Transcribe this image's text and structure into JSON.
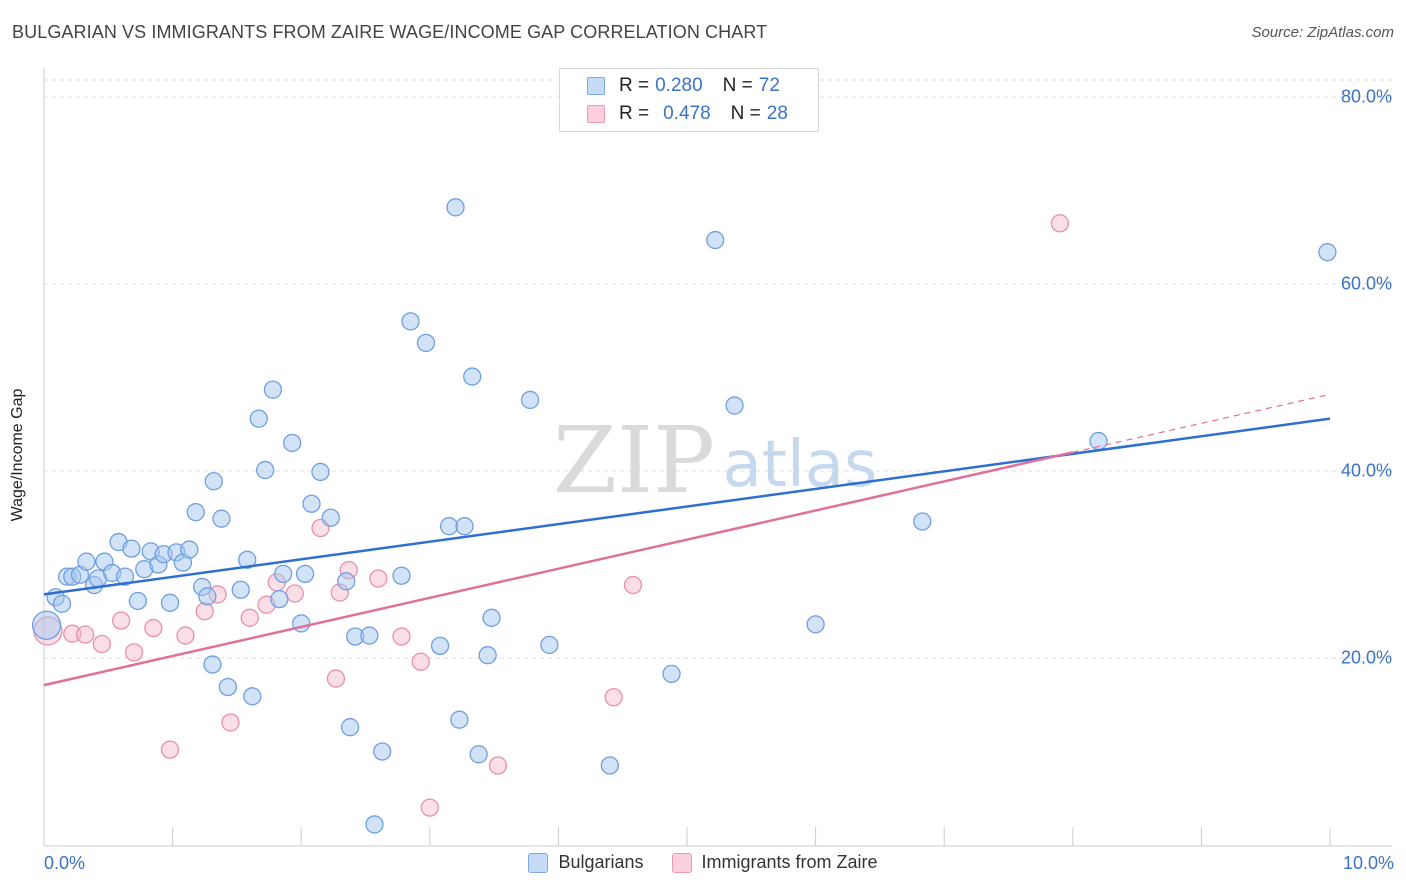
{
  "header": {
    "title": "BULGARIAN VS IMMIGRANTS FROM ZAIRE WAGE/INCOME GAP CORRELATION CHART",
    "source": "Source: ZipAtlas.com"
  },
  "watermark": {
    "zip": "ZIP",
    "atlas": "atlas"
  },
  "legend_top": {
    "rows": [
      {
        "r_label": "R =",
        "r_value": "0.280",
        "n_label": "N =",
        "n_value": "72",
        "color": "#a8c8f0"
      },
      {
        "r_label": "R =",
        "r_value": "0.478",
        "n_label": "N =",
        "n_value": "28",
        "color": "#f5b8c8"
      }
    ]
  },
  "legend_bottom": {
    "items": [
      "Bulgarians",
      "Immigrants from Zaire"
    ]
  },
  "colors": {
    "blue_fill": "#a8c8f0",
    "blue_stroke": "#6f9fe0",
    "blue_line": "#2f6fcf",
    "pink_fill": "#f5b8c8",
    "pink_stroke": "#e890aa",
    "pink_line": "#e0709a",
    "grid": "#dddddd",
    "tick_text": "#3a72c8"
  },
  "chart_data": {
    "type": "scatter",
    "title": "BULGARIAN VS IMMIGRANTS FROM ZAIRE WAGE/INCOME GAP CORRELATION CHART",
    "xlabel": "",
    "ylabel": "Wage/Income Gap",
    "xlim": [
      0,
      10
    ],
    "ylim": [
      0,
      82
    ],
    "x_tick_labels": [
      "0.0%",
      "10.0%"
    ],
    "y_ticks": [
      20,
      40,
      60,
      80
    ],
    "y_tick_labels": [
      "20.0%",
      "40.0%",
      "60.0%",
      "80.0%"
    ],
    "grid": true,
    "series": [
      {
        "name": "Bulgarians",
        "r": 0.28,
        "n": 72,
        "trend": {
          "x": [
            0,
            10
          ],
          "y": [
            26.8,
            45.6
          ]
        },
        "points": [
          [
            0.02,
            23.5
          ],
          [
            0.09,
            26.5
          ],
          [
            0.14,
            25.8
          ],
          [
            0.18,
            28.7
          ],
          [
            0.22,
            28.7
          ],
          [
            0.28,
            28.9
          ],
          [
            0.33,
            30.3
          ],
          [
            0.39,
            27.8
          ],
          [
            0.42,
            28.5
          ],
          [
            0.47,
            30.3
          ],
          [
            0.53,
            29.1
          ],
          [
            0.58,
            32.4
          ],
          [
            0.63,
            28.7
          ],
          [
            0.68,
            31.7
          ],
          [
            0.73,
            26.1
          ],
          [
            0.78,
            29.5
          ],
          [
            0.83,
            31.4
          ],
          [
            0.89,
            30.0
          ],
          [
            0.93,
            31.1
          ],
          [
            0.98,
            25.9
          ],
          [
            1.03,
            31.3
          ],
          [
            1.08,
            30.2
          ],
          [
            1.13,
            31.6
          ],
          [
            1.18,
            35.6
          ],
          [
            1.23,
            27.6
          ],
          [
            1.27,
            26.6
          ],
          [
            1.31,
            19.3
          ],
          [
            1.32,
            38.9
          ],
          [
            1.38,
            34.9
          ],
          [
            1.43,
            16.9
          ],
          [
            1.53,
            27.3
          ],
          [
            1.58,
            30.5
          ],
          [
            1.62,
            15.9
          ],
          [
            1.67,
            45.6
          ],
          [
            1.72,
            40.1
          ],
          [
            1.78,
            48.7
          ],
          [
            1.83,
            26.3
          ],
          [
            1.86,
            29.0
          ],
          [
            1.93,
            43.0
          ],
          [
            2.0,
            23.7
          ],
          [
            2.03,
            29.0
          ],
          [
            2.08,
            36.5
          ],
          [
            2.15,
            39.9
          ],
          [
            2.23,
            35.0
          ],
          [
            2.35,
            28.2
          ],
          [
            2.38,
            12.6
          ],
          [
            2.42,
            22.3
          ],
          [
            2.53,
            22.4
          ],
          [
            2.57,
            2.2
          ],
          [
            2.63,
            10.0
          ],
          [
            2.78,
            28.8
          ],
          [
            2.85,
            56.0
          ],
          [
            2.97,
            53.7
          ],
          [
            3.08,
            21.3
          ],
          [
            3.15,
            34.1
          ],
          [
            3.2,
            68.2
          ],
          [
            3.23,
            13.4
          ],
          [
            3.27,
            34.1
          ],
          [
            3.33,
            50.1
          ],
          [
            3.38,
            9.7
          ],
          [
            3.45,
            20.3
          ],
          [
            3.48,
            24.3
          ],
          [
            3.78,
            47.6
          ],
          [
            3.93,
            21.4
          ],
          [
            4.4,
            8.5
          ],
          [
            4.88,
            18.3
          ],
          [
            5.22,
            64.7
          ],
          [
            5.37,
            47.0
          ],
          [
            6.0,
            23.6
          ],
          [
            6.83,
            34.6
          ],
          [
            8.2,
            43.2
          ],
          [
            9.98,
            63.4
          ]
        ]
      },
      {
        "name": "Immigrants from Zaire",
        "r": 0.478,
        "n": 28,
        "trend": {
          "x": [
            0,
            8.0
          ],
          "y": [
            17.1,
            42.0
          ]
        },
        "trend_extension": {
          "x": [
            8.0,
            10.0
          ],
          "y": [
            42.0,
            48.2
          ]
        },
        "points": [
          [
            0.03,
            22.9
          ],
          [
            0.22,
            22.6
          ],
          [
            0.32,
            22.5
          ],
          [
            0.45,
            21.5
          ],
          [
            0.6,
            24.0
          ],
          [
            0.7,
            20.6
          ],
          [
            0.85,
            23.2
          ],
          [
            0.98,
            10.2
          ],
          [
            1.1,
            22.4
          ],
          [
            1.25,
            25.0
          ],
          [
            1.35,
            26.8
          ],
          [
            1.45,
            13.1
          ],
          [
            1.6,
            24.3
          ],
          [
            1.73,
            25.7
          ],
          [
            1.81,
            28.1
          ],
          [
            1.95,
            26.9
          ],
          [
            2.15,
            33.9
          ],
          [
            2.27,
            17.8
          ],
          [
            2.3,
            27.0
          ],
          [
            2.37,
            29.4
          ],
          [
            2.6,
            28.5
          ],
          [
            2.78,
            22.3
          ],
          [
            2.93,
            19.6
          ],
          [
            3.0,
            4.0
          ],
          [
            3.53,
            8.5
          ],
          [
            4.43,
            15.8
          ],
          [
            4.58,
            27.8
          ],
          [
            7.9,
            66.5
          ]
        ]
      }
    ]
  }
}
